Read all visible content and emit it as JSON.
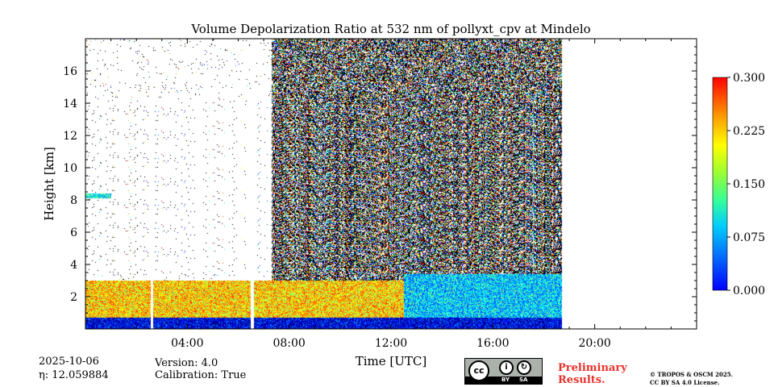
{
  "chart_data": {
    "type": "heatmap",
    "title": "Volume Depolarization Ratio at 532 nm of pollyxt_cpv at Mindelo",
    "xlabel": "Time [UTC]",
    "ylabel": "Height [km]",
    "x_range_hours": [
      0,
      24
    ],
    "x_ticks": [
      {
        "value": 4,
        "label": "04:00"
      },
      {
        "value": 8,
        "label": "08:00"
      },
      {
        "value": 12,
        "label": "12:00"
      },
      {
        "value": 16,
        "label": "16:00"
      },
      {
        "value": 20,
        "label": "20:00"
      }
    ],
    "y_range_km": [
      0,
      18
    ],
    "y_ticks": [
      {
        "value": 2,
        "label": "2"
      },
      {
        "value": 4,
        "label": "4"
      },
      {
        "value": 6,
        "label": "6"
      },
      {
        "value": 8,
        "label": "8"
      },
      {
        "value": 10,
        "label": "10"
      },
      {
        "value": 12,
        "label": "12"
      },
      {
        "value": 14,
        "label": "14"
      },
      {
        "value": 16,
        "label": "16"
      }
    ],
    "colorbar": {
      "range": [
        0.0,
        0.3
      ],
      "colormap": "jet",
      "ticks": [
        {
          "value": 0.0,
          "label": "0.000"
        },
        {
          "value": 0.075,
          "label": "0.075"
        },
        {
          "value": 0.15,
          "label": "0.150"
        },
        {
          "value": 0.225,
          "label": "0.225"
        },
        {
          "value": 0.3,
          "label": "0.300"
        }
      ]
    },
    "data_end_hour": 18.7,
    "data_gaps_hours": [
      [
        2.55,
        2.65
      ],
      [
        6.5,
        6.62
      ]
    ],
    "noise_regime_start_hour": 7.3,
    "layers": [
      {
        "t0": 0,
        "t1": 18.7,
        "h0": 0.0,
        "h1": 0.7,
        "value": 0.03
      },
      {
        "t0": 0,
        "t1": 12.5,
        "h0": 0.7,
        "h1": 3.0,
        "value": 0.2
      },
      {
        "t0": 12.5,
        "t1": 18.7,
        "h0": 0.7,
        "h1": 3.4,
        "value": 0.1
      },
      {
        "t0": 0,
        "t1": 1.0,
        "h0": 8.1,
        "h1": 8.4,
        "value": 0.12
      }
    ],
    "grid": false
  },
  "footer": {
    "date": "2025-10-06",
    "eta": "η: 12.059884",
    "version": "Version: 4.0",
    "calibration": "Calibration: True",
    "license_badge": {
      "left": "cc",
      "by": "BY",
      "sa": "SA"
    },
    "preliminary_line1": "Preliminary",
    "preliminary_line2": "Results.",
    "copyright_line1": "© TROPOS & OSCM 2025.",
    "copyright_line2": "CC BY SA 4.0 License."
  }
}
